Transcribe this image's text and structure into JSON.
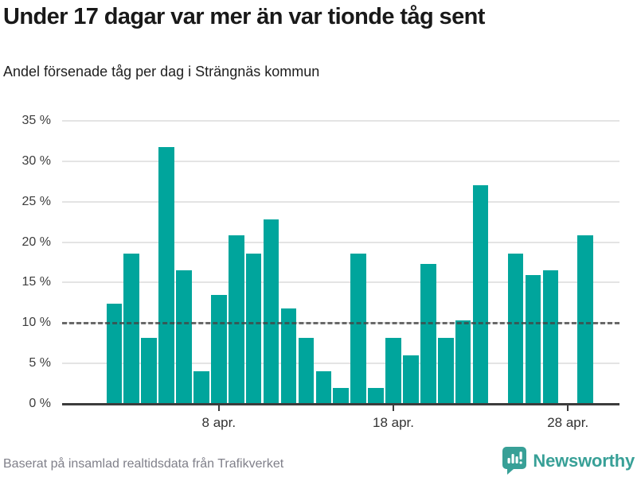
{
  "header": {
    "title": "Under 17 dagar var mer än var tionde tåg sent",
    "subtitle": "Andel försenade tåg per dag i Strängnäs kommun"
  },
  "chart_data": {
    "type": "bar",
    "title": "Under 17 dagar var mer än var tionde tåg sent",
    "subtitle": "Andel försenade tåg per dag i Strängnäs kommun",
    "x": [
      "2 apr.",
      "3 apr.",
      "4 apr.",
      "5 apr.",
      "6 apr.",
      "7 apr.",
      "8 apr.",
      "9 apr.",
      "10 apr.",
      "11 apr.",
      "12 apr.",
      "13 apr.",
      "14 apr.",
      "15 apr.",
      "16 apr.",
      "17 apr.",
      "18 apr.",
      "19 apr.",
      "20 apr.",
      "21 apr.",
      "22 apr.",
      "23 apr.",
      "24 apr.",
      "25 apr.",
      "26 apr.",
      "27 apr.",
      "28 apr.",
      "29 apr."
    ],
    "values": [
      12.4,
      18.6,
      8.2,
      31.8,
      16.5,
      4.0,
      13.5,
      20.8,
      18.6,
      22.8,
      11.8,
      8.2,
      4.0,
      2.0,
      18.6,
      2.0,
      8.2,
      6.0,
      17.3,
      8.2,
      10.3,
      27.0,
      null,
      18.6,
      15.9,
      16.5,
      null,
      20.8
    ],
    "missing_dates": [
      "24 apr.",
      "28 apr."
    ],
    "unit": "%",
    "ylim": [
      0,
      35
    ],
    "yticks": [
      0,
      5,
      10,
      15,
      20,
      25,
      30,
      35
    ],
    "ytick_labels": [
      "0 %",
      "5 %",
      "10 %",
      "15 %",
      "20 %",
      "25 %",
      "30 %",
      "35 %"
    ],
    "xtick_labels": [
      "8 apr.",
      "18 apr.",
      "28 apr."
    ],
    "reference_line": 10,
    "grid": true,
    "legend": "none",
    "bar_color": "#00a59c"
  },
  "footer": {
    "source": "Baserat på insamlad realtidsdata från Trafikverket",
    "brand": "Newsworthy",
    "brand_color": "#38a097"
  }
}
